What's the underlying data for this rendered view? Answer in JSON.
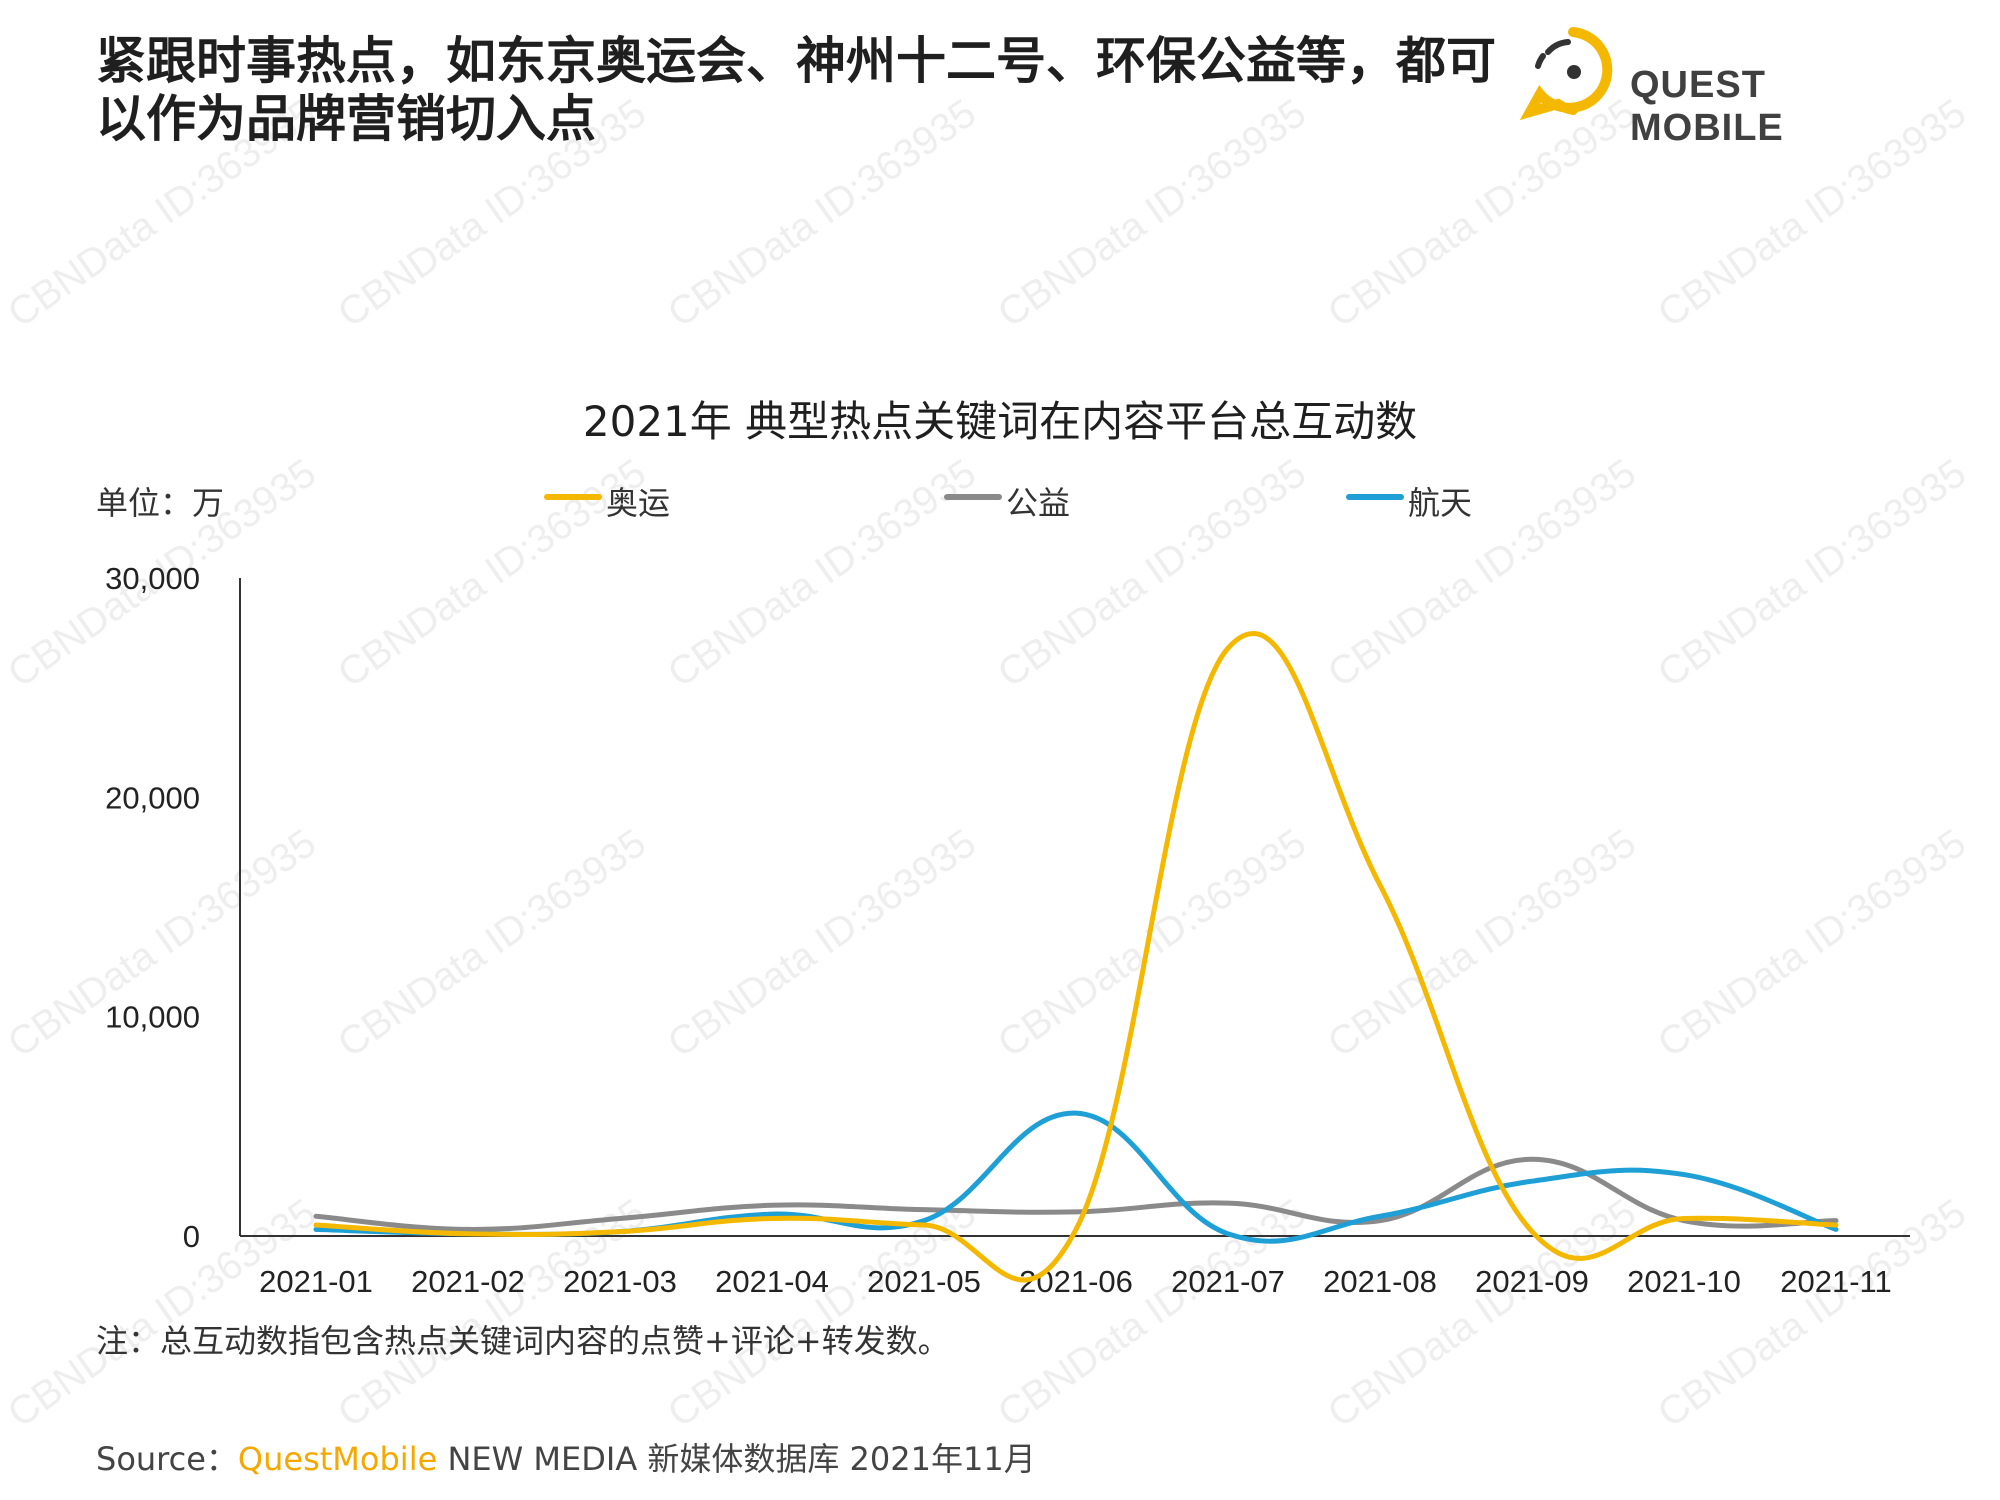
{
  "header": {
    "headline": "紧跟时事热点，如东京奥运会、神州十二号、环保公益等，都可以作为品牌营销切入点",
    "logo_text": "QUEST MOBILE"
  },
  "watermark": "CBNData ID:363935",
  "colors": {
    "brand_yellow": "#f5b800",
    "series_olympic": "#f5b800",
    "series_charity": "#8a8a8a",
    "series_space": "#1e9fd6"
  },
  "chart_data": {
    "type": "line",
    "title": "2021年 典型热点关键词在内容平台总互动数",
    "unit_label": "单位：万",
    "categories": [
      "2021-01",
      "2021-02",
      "2021-03",
      "2021-04",
      "2021-05",
      "2021-06",
      "2021-07",
      "2021-08",
      "2021-09",
      "2021-10",
      "2021-11"
    ],
    "series": [
      {
        "name": "奥运",
        "color": "#f5b800",
        "values": [
          500,
          100,
          200,
          800,
          500,
          300,
          26800,
          16000,
          200,
          800,
          500
        ]
      },
      {
        "name": "公益",
        "color": "#8a8a8a",
        "values": [
          900,
          300,
          800,
          1400,
          1200,
          1100,
          1500,
          700,
          3500,
          700,
          700
        ]
      },
      {
        "name": "航天",
        "color": "#1e9fd6",
        "values": [
          300,
          100,
          200,
          1000,
          700,
          5600,
          100,
          900,
          2500,
          2800,
          300
        ]
      }
    ],
    "yticks": [
      "30,000",
      "20,000",
      "10,000",
      "0"
    ],
    "ylim": [
      0,
      30000
    ],
    "grid": false,
    "legend_position": "top"
  },
  "footer": {
    "note": "注：总互动数指包含热点关键词内容的点赞+评论+转发数。",
    "source_prefix": "Source：",
    "source_brand": "QuestMobile",
    "source_rest": " NEW MEDIA 新媒体数据库 2021年11月"
  }
}
